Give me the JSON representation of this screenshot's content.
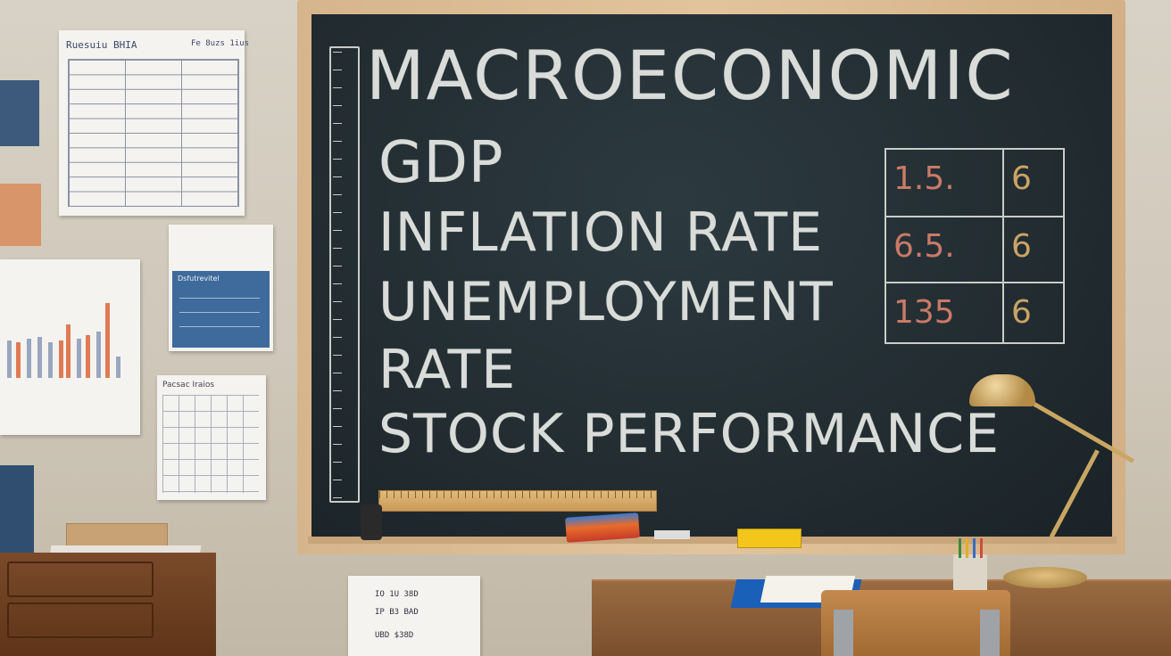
{
  "board": {
    "title": "MACROECONOMIC",
    "lines": [
      "GDP",
      "INFLATION RATE",
      "UNEMPLOYMENT",
      "RATE",
      "STOCK PERFORMANCE"
    ],
    "table": [
      {
        "value": "1.5.",
        "count": "6"
      },
      {
        "value": "6.5.",
        "count": "6"
      },
      {
        "value": "135",
        "count": "6"
      }
    ]
  },
  "wall": {
    "table_sheet_title": "Ruesuiu BHIA",
    "table_sheet_title_right": "Fe 8uzs 1ius",
    "notice_header": "Dsfutrevitel",
    "graph_paper_title": "Pacsac Iraios",
    "lower_sheet_lines": [
      "IO 1U  38D",
      "IP  B3  BAD",
      "UBD  $38D"
    ]
  },
  "colors": {
    "chalk": "#d9dcd8",
    "chalk_red": "#c97a66",
    "chalk_yellow": "#c9a465",
    "board": "#222c31"
  }
}
